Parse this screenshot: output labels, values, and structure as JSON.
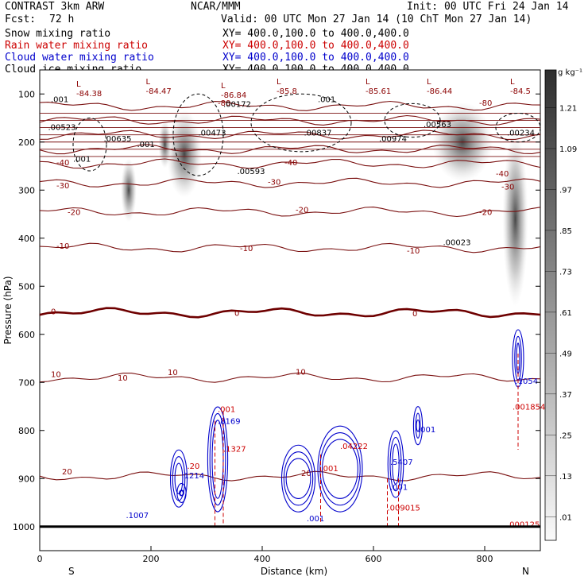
{
  "header": {
    "model": "CONTRAST  3km ARW",
    "org": "NCAR/MMM",
    "init": "Init: 00 UTC Fri 24 Jan 14",
    "fcst_label": "Fcst:",
    "fcst_value": "72 h",
    "valid": "Valid: 00 UTC Mon 27 Jan 14 (10 ChT Mon 27 Jan 14)"
  },
  "fields": [
    {
      "name": "Snow mixing ratio",
      "xy": "XY= 400.0,100.0 to 400.0,400.0",
      "color": "#000000"
    },
    {
      "name": "Rain water mixing ratio",
      "xy": "XY= 400.0,100.0 to 400.0,400.0",
      "color": "#cc0000"
    },
    {
      "name": "Cloud water mixing ratio",
      "xy": "XY= 400.0,100.0 to 400.0,400.0",
      "color": "#0000cc"
    },
    {
      "name": "Cloud ice mixing ratio",
      "xy": "XY= 400.0,100.0 to 400.0,400.0",
      "color": "#000000"
    }
  ],
  "chart_data": {
    "type": "cross-section contour",
    "xlabel": "Distance (km)",
    "ylabel": "Pressure (hPa)",
    "xlim": [
      0,
      900
    ],
    "ylim": [
      1050,
      50
    ],
    "x_ticks": [
      0,
      200,
      400,
      600,
      800
    ],
    "y_ticks": [
      100,
      200,
      300,
      400,
      500,
      600,
      700,
      800,
      900,
      1000
    ],
    "x_end_labels": {
      "left": "S",
      "right": "N"
    },
    "temperature_contours": {
      "color": "#7a1010",
      "freezing_color": "#6e0000",
      "levels": [
        {
          "t": 20,
          "p": 895
        },
        {
          "t": 10,
          "p": 690
        },
        {
          "t": 0,
          "p": 555
        },
        {
          "t": -10,
          "p": 420
        },
        {
          "t": -20,
          "p": 345
        },
        {
          "t": -30,
          "p": 285
        },
        {
          "t": -40,
          "p": 245
        },
        {
          "t": -50,
          "p": 215
        },
        {
          "t": -60,
          "p": 185
        },
        {
          "t": -70,
          "p": 155
        },
        {
          "t": -80,
          "p": 125
        }
      ],
      "labels": [
        {
          "text": "-80",
          "x": 320,
          "p": 118
        },
        {
          "text": "-80",
          "x": 790,
          "p": 118
        },
        {
          "text": "-40",
          "x": 30,
          "p": 242
        },
        {
          "text": "-40",
          "x": 440,
          "p": 242
        },
        {
          "text": "-40",
          "x": 820,
          "p": 265
        },
        {
          "text": "-30",
          "x": 30,
          "p": 290
        },
        {
          "text": "-30",
          "x": 410,
          "p": 282
        },
        {
          "text": "-30",
          "x": 830,
          "p": 292
        },
        {
          "text": "-20",
          "x": 50,
          "p": 345
        },
        {
          "text": "-20",
          "x": 460,
          "p": 340
        },
        {
          "text": "-20",
          "x": 790,
          "p": 345
        },
        {
          "text": "-10",
          "x": 30,
          "p": 415
        },
        {
          "text": "-10",
          "x": 360,
          "p": 420
        },
        {
          "text": "-10",
          "x": 660,
          "p": 425
        },
        {
          "text": "0",
          "x": 20,
          "p": 552
        },
        {
          "text": "0",
          "x": 350,
          "p": 555
        },
        {
          "text": "0",
          "x": 670,
          "p": 556
        },
        {
          "text": "10",
          "x": 20,
          "p": 682
        },
        {
          "text": "10",
          "x": 140,
          "p": 690
        },
        {
          "text": "10",
          "x": 230,
          "p": 678
        },
        {
          "text": "10",
          "x": 460,
          "p": 677
        },
        {
          "text": "20",
          "x": 40,
          "p": 885
        },
        {
          "text": "20",
          "x": 470,
          "p": 888
        }
      ]
    },
    "minima_labels": [
      {
        "text": "-84.38",
        "x": 80,
        "p": 98
      },
      {
        "text": "-84.47",
        "x": 205,
        "p": 93
      },
      {
        "text": "-86.84",
        "x": 340,
        "p": 101
      },
      {
        "text": "-85.8",
        "x": 440,
        "p": 93
      },
      {
        "text": "-85.61",
        "x": 600,
        "p": 93
      },
      {
        "text": "-86.44",
        "x": 710,
        "p": 93
      },
      {
        "text": "-84.5",
        "x": 860,
        "p": 93
      }
    ],
    "snow_ice_labels": [
      {
        "text": ".001",
        "x": 20,
        "p": 110
      },
      {
        "text": ".00172",
        "x": 330,
        "p": 120
      },
      {
        "text": ".001",
        "x": 500,
        "p": 110
      },
      {
        "text": ".00523",
        "x": 15,
        "p": 168
      },
      {
        "text": ".00635",
        "x": 115,
        "p": 192
      },
      {
        "text": ".001",
        "x": 175,
        "p": 204
      },
      {
        "text": ".00473",
        "x": 285,
        "p": 180
      },
      {
        "text": ".00837",
        "x": 475,
        "p": 180
      },
      {
        "text": ".00974",
        "x": 610,
        "p": 192
      },
      {
        "text": ".00563",
        "x": 690,
        "p": 162
      },
      {
        "text": ".00234",
        "x": 840,
        "p": 180
      },
      {
        "text": ".001",
        "x": 60,
        "p": 234
      },
      {
        "text": ".00593",
        "x": 355,
        "p": 260
      },
      {
        "text": ".00023",
        "x": 725,
        "p": 408
      }
    ],
    "rain_labels": [
      {
        "text": ".001",
        "x": 320,
        "p": 755
      },
      {
        "text": ".1327",
        "x": 330,
        "p": 838
      },
      {
        "text": ".20",
        "x": 265,
        "p": 873
      },
      {
        "text": ".04222",
        "x": 540,
        "p": 832
      },
      {
        "text": ".001",
        "x": 505,
        "p": 878
      },
      {
        "text": ".009015",
        "x": 625,
        "p": 960
      },
      {
        "text": ".001854",
        "x": 850,
        "p": 750
      },
      {
        "text": ".000125",
        "x": 840,
        "p": 995
      }
    ],
    "cloud_water_labels": [
      {
        "text": ".8169",
        "x": 320,
        "p": 780
      },
      {
        "text": ".1214",
        "x": 255,
        "p": 893
      },
      {
        "text": ".1007",
        "x": 155,
        "p": 976
      },
      {
        "text": ".5407",
        "x": 630,
        "p": 865
      },
      {
        "text": ".001",
        "x": 630,
        "p": 917
      },
      {
        "text": ".001",
        "x": 680,
        "p": 797
      },
      {
        "text": ".001",
        "x": 480,
        "p": 982
      },
      {
        "text": ".1054",
        "x": 855,
        "p": 696
      }
    ],
    "colorbar": {
      "unit": "g kg⁻¹",
      "levels": [
        ".01",
        ".13",
        ".25",
        ".37",
        ".49",
        ".61",
        ".73",
        ".85",
        ".97",
        "1.09",
        "1.21"
      ]
    }
  }
}
